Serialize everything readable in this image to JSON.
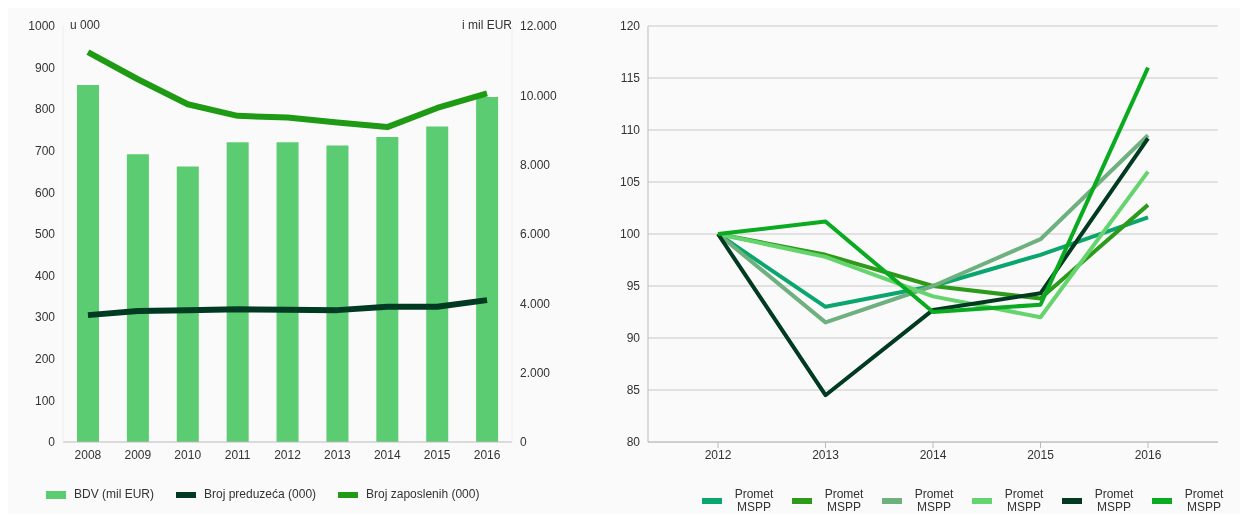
{
  "chart_data": [
    {
      "type": "bar",
      "categories": [
        "2008",
        "2009",
        "2010",
        "2011",
        "2012",
        "2013",
        "2014",
        "2015",
        "2016"
      ],
      "ylabel": "u 000",
      "y2label": "i mil EUR",
      "ylim": [
        0,
        1000
      ],
      "yticks": [
        0,
        100,
        200,
        300,
        400,
        500,
        600,
        700,
        800,
        900,
        1000
      ],
      "y2lim": [
        0,
        12000
      ],
      "y2ticks": [
        0,
        {
          "value": 2000,
          "label": "2.000"
        },
        {
          "value": 4000,
          "label": "4.000"
        },
        {
          "value": 6000,
          "label": "6.000"
        },
        {
          "value": 8000,
          "label": "8.000"
        },
        {
          "value": 10000,
          "label": "10.000"
        },
        {
          "value": 12000,
          "label": "12.000"
        }
      ],
      "grid": false,
      "legend": "bottom",
      "series": [
        {
          "name": "BDV (mil EUR)",
          "axis": "y2",
          "color": "#5ccc72",
          "values": [
            10300,
            8300,
            7950,
            8650,
            8650,
            8550,
            8800,
            9100,
            9950
          ]
        },
        {
          "name": "Broj preduzeća (000)",
          "type": "line",
          "color": "#003a22",
          "values": [
            305,
            315,
            317,
            319,
            318,
            317,
            325,
            325,
            341
          ]
        },
        {
          "name": "Broj zaposlenih (000)",
          "type": "line",
          "color": "#1f9a14",
          "values": [
            937,
            872,
            812,
            784,
            780,
            768,
            757,
            803,
            838
          ]
        }
      ]
    },
    {
      "type": "line",
      "categories": [
        "2012",
        "2013",
        "2014",
        "2015",
        "2016"
      ],
      "ylim": [
        80,
        120
      ],
      "yticks": [
        80,
        85,
        90,
        95,
        100,
        105,
        110,
        115,
        120
      ],
      "grid": "y",
      "legend": "bottom",
      "series": [
        {
          "name": "Promet MSPP",
          "color": "#0aa66e",
          "values": [
            100,
            93,
            95,
            98,
            101.6
          ]
        },
        {
          "name": "Promet MSPP",
          "color": "#2e9a1a",
          "values": [
            100,
            98,
            95,
            93.8,
            102.8
          ]
        },
        {
          "name": "Promet MSPP",
          "color": "#6fb07f",
          "values": [
            100,
            91.5,
            95,
            99.5,
            109.5
          ]
        },
        {
          "name": "Promet MSPP",
          "color": "#66d46e",
          "values": [
            100,
            97.8,
            94,
            92,
            106
          ]
        },
        {
          "name": "Promet MSPP",
          "color": "#003a20",
          "values": [
            100,
            84.5,
            92.7,
            94.3,
            109.2
          ]
        },
        {
          "name": "Promet MSPP",
          "color": "#0aab20",
          "values": [
            100,
            101.2,
            92.5,
            93.2,
            116
          ]
        }
      ]
    }
  ]
}
